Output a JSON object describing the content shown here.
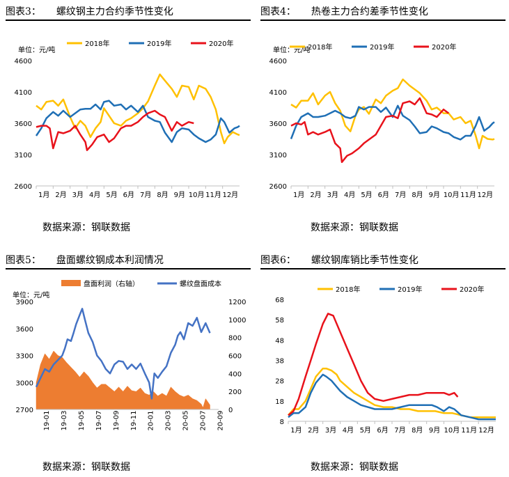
{
  "panels": [
    {
      "num": "图表3：",
      "title": "螺纹钢主力合约季节性变化",
      "source": "数据来源：钢联数据"
    },
    {
      "num": "图表4：",
      "title": "热卷主力合约差季节性变化",
      "source": "数据来源：钢联数据"
    },
    {
      "num": "图表5：",
      "title": "盘面螺纹钢成本利润情况",
      "source": "数据来源：钢联数据"
    },
    {
      "num": "图表6：",
      "title": "螺纹钢库销比季节性变化",
      "source": "数据来源：钢联数据"
    }
  ],
  "colors": {
    "y2018": "#FFC000",
    "y2019": "#1F6FB5",
    "y2020": "#E8121B",
    "profit": "#ED7D31",
    "cost": "#4472C4"
  },
  "chart_data": [
    {
      "type": "line",
      "title": "螺纹钢主力合约季节性变化",
      "unit": "单位：元/吨",
      "ylim": [
        2600,
        4600
      ],
      "yticks": [
        2600,
        3100,
        3600,
        4100,
        4600
      ],
      "xlim": [
        1,
        13
      ],
      "x_tick_labels": [
        "1月",
        "2月",
        "3月",
        "4月",
        "5月",
        "6月",
        "7月",
        "8月",
        "9月",
        "10月",
        "11月",
        "12月"
      ],
      "series": [
        {
          "name": "2018年",
          "x": [
            1,
            1.3,
            1.6,
            2,
            2.3,
            2.6,
            3,
            3.3,
            3.6,
            3.9,
            4.2,
            4.5,
            4.8,
            5,
            5.3,
            5.6,
            6,
            6.3,
            6.6,
            7,
            7.3,
            7.6,
            8,
            8.3,
            8.6,
            9,
            9.3,
            9.6,
            10,
            10.3,
            10.6,
            11,
            11.3,
            11.6,
            11.9,
            12.1,
            12.3,
            12.6,
            12.9,
            13
          ],
          "y": [
            3880,
            3820,
            3940,
            3960,
            3880,
            3980,
            3700,
            3520,
            3640,
            3560,
            3380,
            3520,
            3620,
            3840,
            3720,
            3600,
            3560,
            3640,
            3680,
            3760,
            3840,
            3950,
            4200,
            4380,
            4280,
            4150,
            4020,
            4200,
            4180,
            3980,
            4200,
            4150,
            4020,
            3820,
            3460,
            3280,
            3380,
            3460,
            3420,
            3410
          ]
        },
        {
          "name": "2019年",
          "x": [
            1,
            1.3,
            1.6,
            2,
            2.3,
            2.6,
            3,
            3.3,
            3.6,
            3.9,
            4.2,
            4.5,
            4.8,
            5,
            5.3,
            5.6,
            6,
            6.3,
            6.6,
            7,
            7.3,
            7.6,
            8,
            8.3,
            8.6,
            9,
            9.3,
            9.6,
            10,
            10.3,
            10.6,
            11,
            11.3,
            11.6,
            11.9,
            12.1,
            12.4,
            12.7,
            12.9,
            13
          ],
          "y": [
            3400,
            3520,
            3680,
            3780,
            3720,
            3800,
            3700,
            3760,
            3820,
            3830,
            3830,
            3900,
            3820,
            3940,
            3960,
            3880,
            3900,
            3820,
            3880,
            3780,
            3880,
            3700,
            3640,
            3620,
            3450,
            3300,
            3460,
            3520,
            3500,
            3420,
            3360,
            3300,
            3340,
            3420,
            3680,
            3620,
            3450,
            3520,
            3540,
            3560
          ]
        },
        {
          "name": "2020年",
          "x": [
            1,
            1.3,
            1.6,
            1.8,
            2,
            2.3,
            2.6,
            3,
            3.3,
            3.6,
            3.9,
            4,
            4.3,
            4.6,
            5,
            5.3,
            5.6,
            6,
            6.3,
            6.6,
            7,
            7.3,
            7.6,
            8,
            8.3,
            8.6,
            9,
            9.3,
            9.6,
            10,
            10.3
          ],
          "y": [
            3540,
            3560,
            3560,
            3520,
            3200,
            3460,
            3440,
            3480,
            3560,
            3420,
            3300,
            3170,
            3260,
            3380,
            3420,
            3300,
            3360,
            3520,
            3560,
            3560,
            3620,
            3700,
            3760,
            3800,
            3740,
            3700,
            3480,
            3620,
            3560,
            3620,
            3600
          ]
        }
      ]
    },
    {
      "type": "line",
      "title": "热卷主力合约差季节性变化",
      "unit": "单位：元/吨",
      "ylim": [
        2600,
        4600
      ],
      "yticks": [
        2600,
        3100,
        3600,
        4100,
        4600
      ],
      "xlim": [
        1,
        13
      ],
      "x_tick_labels": [
        "1月",
        "2月",
        "3月",
        "4月",
        "5月",
        "6月",
        "7月",
        "8月",
        "9月",
        "10月",
        "11月",
        "12月"
      ],
      "series": [
        {
          "name": "2018年",
          "x": [
            1,
            1.3,
            1.6,
            2,
            2.3,
            2.6,
            3,
            3.3,
            3.6,
            3.9,
            4.2,
            4.5,
            4.8,
            5,
            5.3,
            5.6,
            6,
            6.3,
            6.6,
            7,
            7.3,
            7.6,
            8,
            8.3,
            8.6,
            9,
            9.3,
            9.6,
            10,
            10.3,
            10.6,
            11,
            11.3,
            11.6,
            11.9,
            12.1,
            12.3,
            12.6,
            12.9,
            13
          ],
          "y": [
            3900,
            3850,
            3960,
            3960,
            4080,
            3900,
            4040,
            4100,
            3920,
            3800,
            3560,
            3470,
            3720,
            3820,
            3860,
            3750,
            3980,
            3920,
            4040,
            4120,
            4160,
            4300,
            4200,
            4140,
            4080,
            3960,
            3820,
            3850,
            3760,
            3760,
            3660,
            3700,
            3600,
            3640,
            3400,
            3200,
            3400,
            3350,
            3340,
            3350
          ]
        },
        {
          "name": "2019年",
          "x": [
            1,
            1.3,
            1.6,
            2,
            2.3,
            2.6,
            3,
            3.3,
            3.6,
            3.9,
            4.2,
            4.5,
            4.8,
            5,
            5.3,
            5.6,
            6,
            6.3,
            6.6,
            7,
            7.3,
            7.6,
            8,
            8.3,
            8.6,
            9,
            9.3,
            9.6,
            10,
            10.3,
            10.6,
            11,
            11.3,
            11.6,
            11.9,
            12.1,
            12.4,
            12.7,
            12.9,
            13
          ],
          "y": [
            3350,
            3560,
            3700,
            3760,
            3700,
            3700,
            3720,
            3760,
            3800,
            3760,
            3700,
            3680,
            3720,
            3860,
            3820,
            3860,
            3860,
            3780,
            3850,
            3700,
            3880,
            3720,
            3650,
            3550,
            3440,
            3460,
            3550,
            3520,
            3460,
            3440,
            3380,
            3340,
            3400,
            3400,
            3560,
            3700,
            3480,
            3540,
            3600,
            3620
          ]
        },
        {
          "name": "2020年",
          "x": [
            1,
            1.3,
            1.6,
            1.8,
            2,
            2.3,
            2.6,
            3,
            3.3,
            3.6,
            3.9,
            4,
            4.3,
            4.6,
            5,
            5.3,
            5.6,
            6,
            6.3,
            6.6,
            7,
            7.3,
            7.6,
            8,
            8.3,
            8.6,
            9,
            9.3,
            9.6,
            10,
            10.3
          ],
          "y": [
            3560,
            3600,
            3580,
            3620,
            3420,
            3460,
            3420,
            3460,
            3500,
            3280,
            3200,
            2980,
            3080,
            3120,
            3200,
            3280,
            3340,
            3420,
            3560,
            3700,
            3720,
            3680,
            3920,
            3950,
            3900,
            4000,
            3760,
            3740,
            3700,
            3820,
            3760
          ]
        }
      ]
    },
    {
      "type": "bar+line",
      "title": "盘面螺纹钢成本利润情况",
      "unit": "单位：元/吨",
      "ylim_left": [
        2700,
        3900
      ],
      "yticks_left": [
        2700,
        3000,
        3300,
        3600,
        3900
      ],
      "ylim_right": [
        0,
        1200
      ],
      "yticks_right": [
        0,
        200,
        400,
        600,
        800,
        1000,
        1200
      ],
      "x_tick_labels": [
        "19-01",
        "19-03",
        "19-05",
        "19-07",
        "19-09",
        "19-11",
        "20-01",
        "20-03",
        "20-05",
        "20-07",
        "20-09"
      ],
      "xlim": [
        0,
        21
      ],
      "series": [
        {
          "name": "盘面利润（右轴）",
          "axis": "right",
          "type": "area",
          "x": [
            0,
            0.5,
            1,
            1.5,
            2,
            2.5,
            3,
            3.5,
            4,
            4.5,
            5,
            5.5,
            6,
            6.5,
            7,
            7.5,
            8,
            8.5,
            9,
            9.5,
            10,
            10.5,
            11,
            11.5,
            12,
            12.5,
            13,
            13.5,
            14,
            14.5,
            15,
            15.5,
            16,
            16.5,
            17,
            17.5,
            18,
            18.5,
            19,
            19.2,
            19.5,
            20
          ],
          "y": [
            300,
            500,
            620,
            560,
            650,
            600,
            580,
            520,
            470,
            420,
            360,
            420,
            370,
            300,
            240,
            280,
            280,
            240,
            200,
            250,
            200,
            260,
            210,
            200,
            240,
            180,
            160,
            200,
            150,
            180,
            150,
            250,
            200,
            160,
            140,
            160,
            120,
            100,
            60,
            20,
            120,
            50
          ]
        },
        {
          "name": "螺纹盘面成本",
          "axis": "left",
          "type": "line",
          "x": [
            0,
            0.5,
            1,
            1.5,
            2,
            2.5,
            3,
            3.3,
            3.6,
            4,
            4.3,
            4.6,
            5,
            5.3,
            5.6,
            6,
            6.5,
            7,
            7.5,
            8,
            8.5,
            9,
            9.5,
            10,
            10.5,
            11,
            11.5,
            12,
            12.5,
            13,
            13.3,
            13.6,
            14,
            14.5,
            15,
            15.5,
            16,
            16.3,
            16.6,
            17,
            17.5,
            18,
            18.5,
            19,
            19.5,
            20
          ],
          "y": [
            2950,
            3050,
            3150,
            3120,
            3200,
            3250,
            3300,
            3380,
            3480,
            3460,
            3550,
            3650,
            3750,
            3820,
            3700,
            3550,
            3450,
            3300,
            3240,
            3150,
            3100,
            3200,
            3240,
            3230,
            3150,
            3200,
            3150,
            3210,
            3100,
            3000,
            2820,
            3100,
            3050,
            3120,
            3180,
            3330,
            3420,
            3520,
            3560,
            3480,
            3660,
            3630,
            3720,
            3560,
            3660,
            3550
          ]
        }
      ]
    },
    {
      "type": "line",
      "title": "螺纹钢库销比季节性变化",
      "unit": "",
      "ylim": [
        8,
        68
      ],
      "yticks": [
        8,
        18,
        28,
        38,
        48,
        58,
        68
      ],
      "xlim": [
        1,
        13
      ],
      "x_tick_labels": [
        "1月",
        "2月",
        "3月",
        "4月",
        "5月",
        "6月",
        "7月",
        "8月",
        "9月",
        "10月",
        "11月",
        "12月"
      ],
      "series": [
        {
          "name": "2018年",
          "x": [
            1,
            1.3,
            1.6,
            2,
            2.3,
            2.6,
            3,
            3.2,
            3.5,
            3.8,
            4,
            4.4,
            4.8,
            5.2,
            5.6,
            6,
            6.5,
            7,
            7.5,
            8,
            8.5,
            9,
            9.5,
            10,
            10.5,
            11,
            11.5,
            12,
            12.5,
            13
          ],
          "y": [
            11,
            14,
            14,
            18,
            24,
            30,
            34,
            34,
            33,
            31,
            28,
            25,
            22,
            20,
            18,
            16,
            15,
            15,
            14,
            14,
            13,
            13,
            13,
            12,
            12,
            11,
            10,
            10,
            10,
            10
          ]
        },
        {
          "name": "2019年",
          "x": [
            1,
            1.3,
            1.6,
            2,
            2.3,
            2.6,
            3,
            3.2,
            3.5,
            3.8,
            4,
            4.4,
            4.8,
            5.2,
            5.6,
            6,
            6.5,
            7,
            7.5,
            8,
            8.5,
            9,
            9.3,
            9.6,
            10,
            10.3,
            10.6,
            11,
            11.5,
            12,
            12.5,
            13
          ],
          "y": [
            10,
            12,
            12,
            15,
            22,
            27,
            31,
            30,
            28,
            25,
            23,
            20,
            18,
            16,
            15,
            14,
            14,
            14,
            15,
            16,
            16,
            16,
            16,
            15,
            13,
            15,
            14,
            11,
            10,
            9,
            9,
            9
          ]
        },
        {
          "name": "2020年",
          "x": [
            1,
            1.3,
            1.6,
            2,
            2.3,
            2.6,
            3,
            3.3,
            3.6,
            4,
            4.4,
            4.8,
            5.2,
            5.6,
            6,
            6.5,
            7,
            7.5,
            8,
            8.5,
            9,
            9.5,
            10,
            10.3,
            10.6,
            10.8
          ],
          "y": [
            11,
            13,
            19,
            30,
            38,
            46,
            56,
            61,
            60,
            52,
            44,
            36,
            28,
            22,
            19,
            18,
            19,
            20,
            21,
            21,
            22,
            22,
            22,
            21,
            22,
            20
          ]
        }
      ]
    }
  ]
}
